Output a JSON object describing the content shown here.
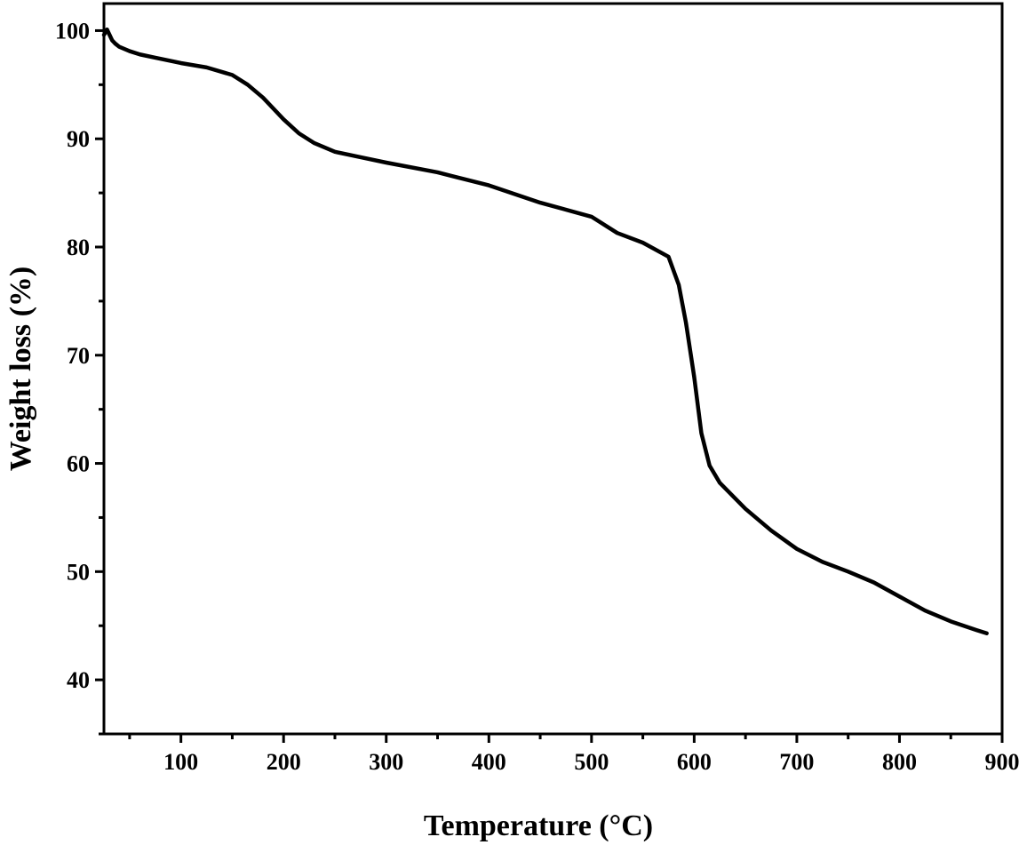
{
  "chart_data": {
    "type": "line",
    "title": "",
    "xlabel": "Temperature (°C)",
    "ylabel": "Weight loss (%)",
    "xlim": [
      25,
      900
    ],
    "ylim": [
      35,
      102.5
    ],
    "x_ticks": [
      100,
      200,
      300,
      400,
      500,
      600,
      700,
      800,
      900
    ],
    "y_ticks": [
      40,
      50,
      60,
      70,
      80,
      90,
      100
    ],
    "grid": false,
    "legend": "none",
    "line_color": "#000000",
    "series": [
      {
        "x": [
          25,
          28,
          30,
          33,
          36,
          40,
          50,
          60,
          75,
          100,
          125,
          150,
          165,
          180,
          200,
          215,
          230,
          250,
          275,
          300,
          350,
          400,
          450,
          500,
          525,
          550,
          575,
          585,
          592,
          600,
          607,
          615,
          625,
          650,
          675,
          700,
          725,
          750,
          775,
          800,
          825,
          850,
          875,
          885
        ],
        "y": [
          99.6,
          100.1,
          99.7,
          99.1,
          98.8,
          98.5,
          98.1,
          97.8,
          97.5,
          97.0,
          96.6,
          95.9,
          95.0,
          93.8,
          91.8,
          90.5,
          89.6,
          88.8,
          88.3,
          87.8,
          86.9,
          85.7,
          84.1,
          82.8,
          81.3,
          80.4,
          79.1,
          76.5,
          73.0,
          68.0,
          62.8,
          59.8,
          58.2,
          55.8,
          53.8,
          52.1,
          50.9,
          50.0,
          49.0,
          47.7,
          46.4,
          45.4,
          44.6,
          44.3
        ]
      }
    ]
  }
}
